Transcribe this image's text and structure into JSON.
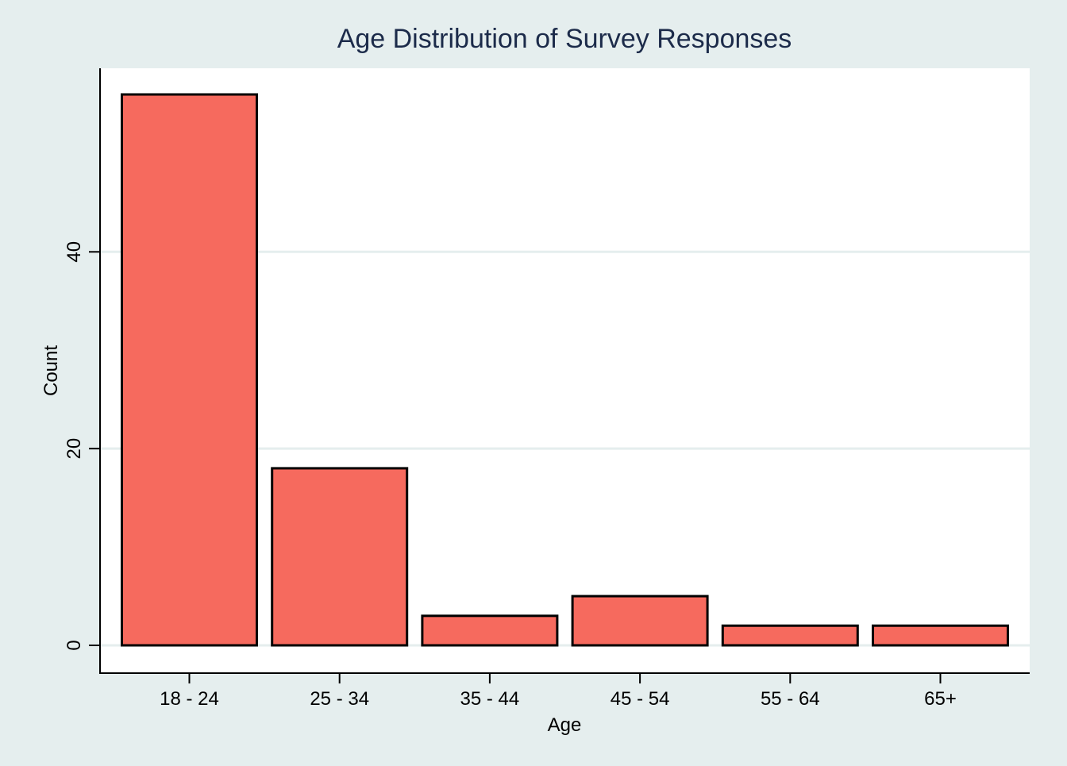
{
  "chart_data": {
    "type": "bar",
    "title": "Age Distribution of Survey Responses",
    "xlabel": "Age",
    "ylabel": "Count",
    "categories": [
      "18 - 24",
      "25 - 34",
      "35 - 44",
      "45 - 54",
      "55 - 64",
      "65+"
    ],
    "values": [
      56,
      18,
      3,
      5,
      2,
      2
    ],
    "ylim": [
      0,
      56
    ],
    "yticks": [
      0,
      20,
      40
    ],
    "grid": true,
    "legend": "none",
    "colors": {
      "bar_fill": "#f66a5e",
      "bar_stroke": "#000000",
      "plot_background": "#ffffff",
      "figure_background": "#e5eeee",
      "gridline": "#e5eeee",
      "title": "#1c2b4a",
      "text": "#000000"
    }
  }
}
